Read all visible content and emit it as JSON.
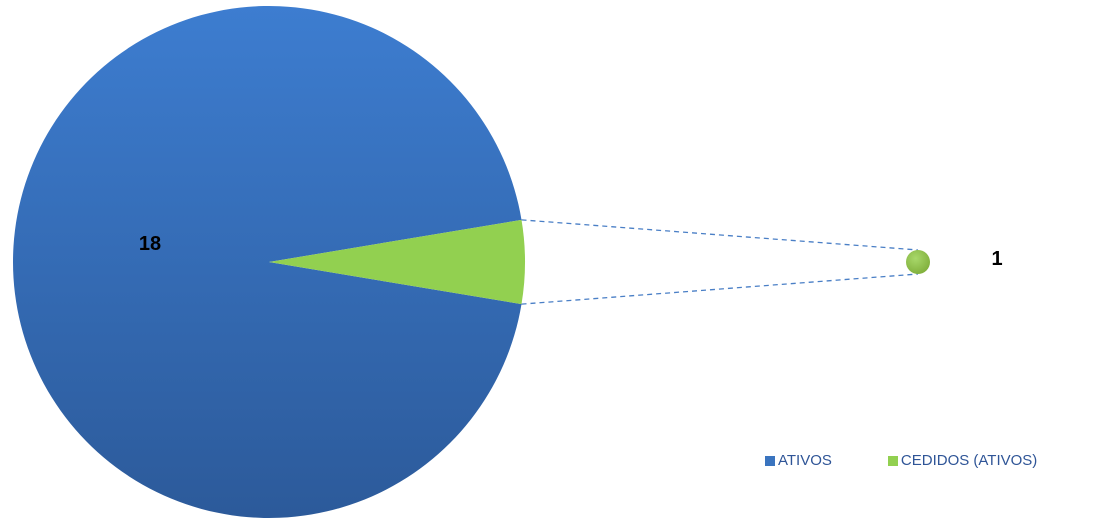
{
  "chart_data": {
    "type": "pie",
    "subtype": "pie-of-pie",
    "title": "",
    "categories": [
      "ATIVOS",
      "CEDIDOS (ATIVOS)"
    ],
    "values": [
      18,
      1
    ],
    "data_labels": [
      "18",
      "1"
    ],
    "colors": [
      "#3a74bf",
      "#92d050"
    ],
    "legend_position": "bottom-right",
    "secondary_pie": {
      "categories": [
        "CEDIDOS (ATIVOS)"
      ],
      "values": [
        1
      ]
    }
  },
  "legend": {
    "items": [
      {
        "label": "ATIVOS",
        "color": "#3a74bf"
      },
      {
        "label": "CEDIDOS (ATIVOS)",
        "color": "#92d050"
      }
    ]
  }
}
